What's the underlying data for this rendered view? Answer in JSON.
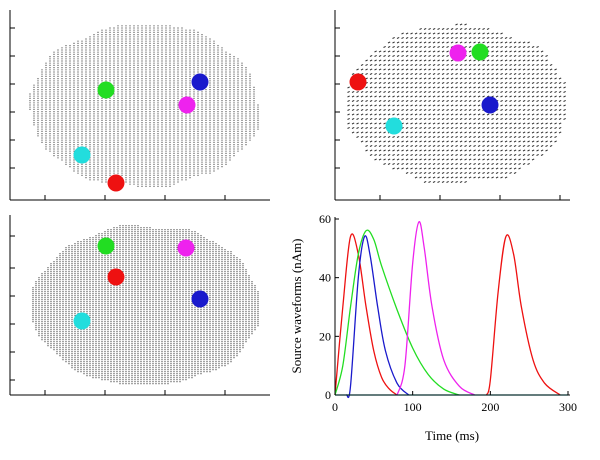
{
  "panels": {
    "top_left_sources": [
      {
        "color": "#1a1acc"
      },
      {
        "color": "#22dd22"
      },
      {
        "color": "#ee22ee"
      },
      {
        "color": "#22dddd"
      },
      {
        "color": "#ee1111"
      }
    ],
    "top_right_sources": [
      {
        "color": "#ee1111"
      },
      {
        "color": "#ee22ee"
      },
      {
        "color": "#22dd22"
      },
      {
        "color": "#1a1acc"
      },
      {
        "color": "#22dddd"
      }
    ],
    "bottom_left_sources": [
      {
        "color": "#22dd22"
      },
      {
        "color": "#ee22ee"
      },
      {
        "color": "#ee1111"
      },
      {
        "color": "#1a1acc"
      },
      {
        "color": "#22dddd"
      }
    ]
  },
  "chart_data": {
    "type": "line",
    "xlabel": "Time (ms)",
    "ylabel": "Source waveforms (nAm)",
    "xlim": [
      0,
      300
    ],
    "ylim": [
      0,
      60
    ],
    "xticks": [
      "0",
      "100",
      "200",
      "300"
    ],
    "yticks": [
      "0",
      "20",
      "40",
      "60"
    ],
    "series": [
      {
        "color": "#ee1111",
        "points": [
          [
            0,
            0
          ],
          [
            10,
            30
          ],
          [
            20,
            54
          ],
          [
            30,
            48
          ],
          [
            40,
            30
          ],
          [
            50,
            15
          ],
          [
            60,
            6
          ],
          [
            70,
            2
          ],
          [
            80,
            0
          ]
        ]
      },
      {
        "color": "#22dd22",
        "points": [
          [
            0,
            0
          ],
          [
            10,
            10
          ],
          [
            20,
            30
          ],
          [
            30,
            48
          ],
          [
            40,
            56
          ],
          [
            50,
            53
          ],
          [
            60,
            44
          ],
          [
            80,
            29
          ],
          [
            100,
            16
          ],
          [
            120,
            7
          ],
          [
            140,
            2
          ],
          [
            160,
            0
          ]
        ]
      },
      {
        "color": "#1a1acc",
        "points": [
          [
            15,
            0
          ],
          [
            20,
            3
          ],
          [
            30,
            40
          ],
          [
            38,
            54
          ],
          [
            45,
            48
          ],
          [
            55,
            30
          ],
          [
            65,
            15
          ],
          [
            80,
            4
          ],
          [
            95,
            0
          ]
        ]
      },
      {
        "color": "#ee22ee",
        "points": [
          [
            80,
            0
          ],
          [
            90,
            10
          ],
          [
            100,
            45
          ],
          [
            108,
            59
          ],
          [
            115,
            50
          ],
          [
            125,
            30
          ],
          [
            140,
            12
          ],
          [
            160,
            3
          ],
          [
            180,
            0
          ]
        ]
      },
      {
        "color": "#ee1111",
        "points": [
          [
            195,
            0
          ],
          [
            200,
            5
          ],
          [
            210,
            35
          ],
          [
            220,
            54
          ],
          [
            230,
            48
          ],
          [
            240,
            30
          ],
          [
            255,
            12
          ],
          [
            270,
            4
          ],
          [
            290,
            0
          ]
        ]
      },
      {
        "color": "#22dddd",
        "points": [
          [
            0,
            0
          ],
          [
            300,
            0
          ]
        ]
      }
    ]
  }
}
